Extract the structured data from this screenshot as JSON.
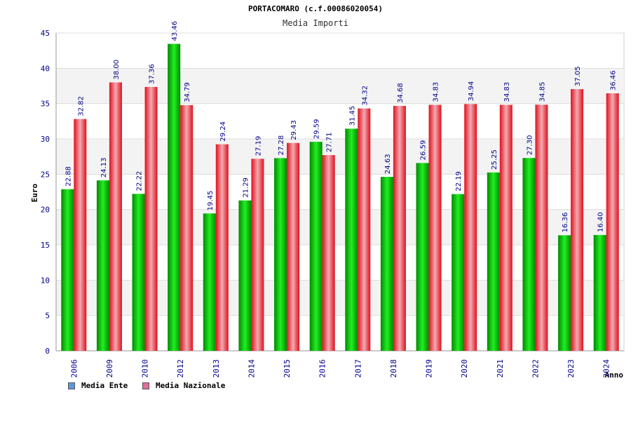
{
  "chart_data": {
    "type": "bar",
    "title": "PORTACOMARO (c.f.00086020054)",
    "subtitle": "Media Importi",
    "ylabel": "Euro",
    "xlabel": "Anno",
    "ylim": [
      0,
      45
    ],
    "yticks": [
      0,
      5,
      10,
      15,
      20,
      25,
      30,
      35,
      40,
      45
    ],
    "grid": true,
    "legend_position": "bottom-left",
    "categories": [
      "2006",
      "2009",
      "2010",
      "2012",
      "2013",
      "2014",
      "2015",
      "2016",
      "2017",
      "2018",
      "2019",
      "2020",
      "2021",
      "2022",
      "2023",
      "2024"
    ],
    "series": [
      {
        "name": "Media Ente",
        "color": "#00c000",
        "values": [
          22.88,
          24.13,
          22.22,
          43.46,
          19.45,
          21.29,
          27.28,
          29.59,
          31.45,
          24.63,
          26.59,
          22.19,
          25.25,
          27.3,
          16.36,
          16.4
        ],
        "labels": [
          "22.88",
          "24.13",
          "22.22",
          "43.46",
          "19.45",
          "21.29",
          "27.28",
          "29.59",
          "31.45",
          "24.63",
          "26.59",
          "22.19",
          "25.25",
          "27.30",
          "16.36",
          "16.40"
        ]
      },
      {
        "name": "Media Nazionale",
        "color": "#e8202a",
        "values": [
          32.82,
          38.0,
          37.36,
          34.79,
          29.24,
          27.19,
          29.43,
          27.71,
          34.32,
          34.68,
          34.83,
          34.94,
          34.83,
          34.85,
          37.05,
          36.46
        ],
        "labels": [
          "32.82",
          "38.00",
          "37.36",
          "34.79",
          "29.24",
          "27.19",
          "29.43",
          "27.71",
          "34.32",
          "34.68",
          "34.83",
          "34.94",
          "34.83",
          "34.85",
          "37.05",
          "36.46"
        ]
      }
    ]
  },
  "legend": {
    "items": [
      {
        "label": "Media Ente",
        "color": "#5b9bd5"
      },
      {
        "label": "Media Nazionale",
        "color": "#e0709a"
      }
    ]
  }
}
